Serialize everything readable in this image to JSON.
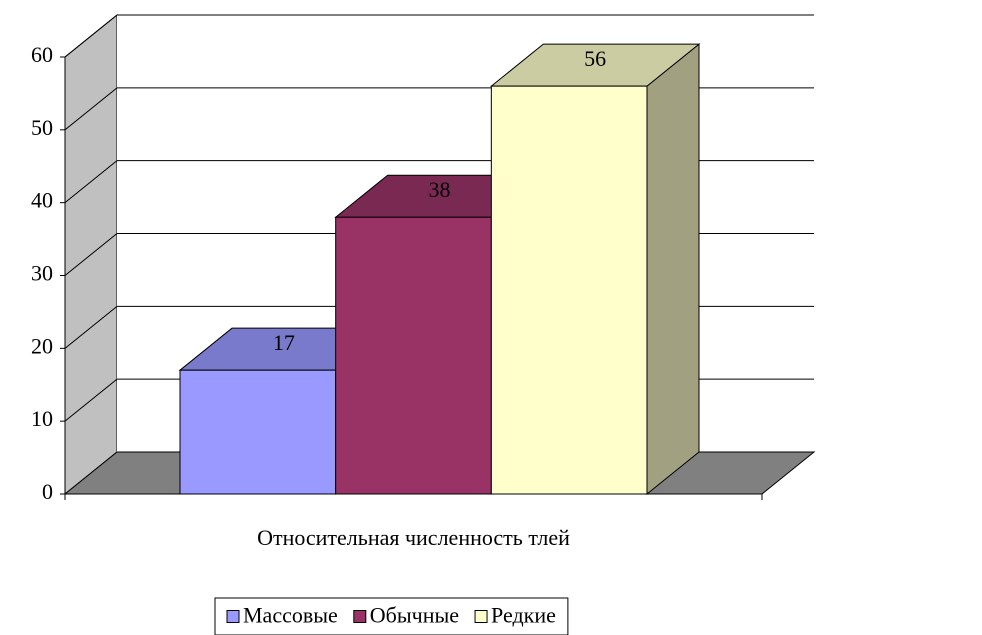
{
  "chart_data": {
    "type": "bar3d",
    "categories": [
      "Относительная численность тлей"
    ],
    "series": [
      {
        "name": "Массовые",
        "color": "#9999ff",
        "values": [
          17
        ]
      },
      {
        "name": "Обычные",
        "color": "#993366",
        "values": [
          38
        ]
      },
      {
        "name": "Редкие",
        "color": "#ffffcc",
        "values": [
          56
        ]
      }
    ],
    "ylim": [
      0,
      60
    ],
    "yticks": [
      0,
      10,
      20,
      30,
      40,
      50,
      60
    ],
    "grid": true,
    "legend": "bottom"
  }
}
